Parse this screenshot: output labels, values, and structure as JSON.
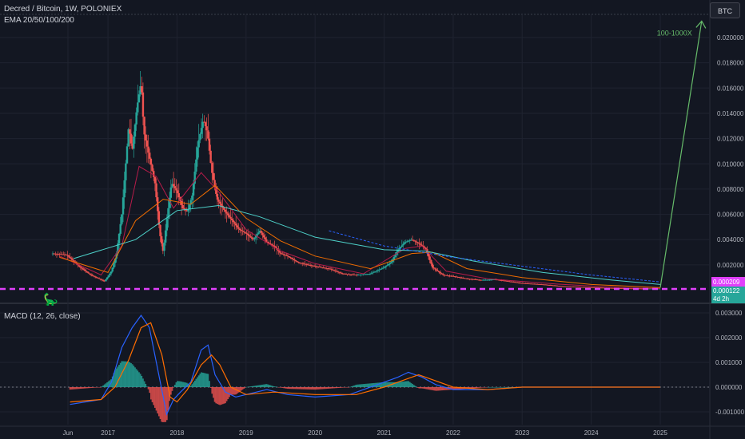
{
  "header": {
    "symbol_line": "Decred / Bitcoin, 1W, POLONIEX",
    "indicator_line": "EMA 20/50/100/200"
  },
  "macd_label": "MACD (12, 26, close)",
  "currency_button": "BTC",
  "price_tags": {
    "pink": "0.000209",
    "green_price": "0.000122",
    "green_countdown": "4d 2h"
  },
  "colors": {
    "background": "#131722",
    "grid": "#1f2330",
    "up": "#26a69a",
    "down": "#ef5350",
    "ema20": "#b71c4a",
    "ema50": "#ef6c00",
    "ema100": "#4dd0c8",
    "ema200": "#2962ff",
    "support": "#e040fb",
    "arrow": "#66bb6a",
    "macd": "#2962ff",
    "signal": "#ff6d00"
  },
  "chart_data": [
    {
      "type": "candlestick",
      "title": "Decred / Bitcoin, 1W, POLONIEX",
      "ylabel": "BTC",
      "ylim": [
        -3e-05,
        0.0215
      ],
      "y_ticks": [
        "0.020000",
        "0.018000",
        "0.016000",
        "0.014000",
        "0.012000",
        "0.010000",
        "0.008000",
        "0.006000",
        "0.004000",
        "0.002000"
      ],
      "x_ticks": [
        "Jun",
        "2017",
        "2018",
        "2019",
        "2020",
        "2021",
        "2022",
        "2023",
        "2024",
        "2025"
      ],
      "x_tick_dates": [
        2016.42,
        2017.0,
        2018.0,
        2019.0,
        2020.0,
        2021.0,
        2022.0,
        2023.0,
        2024.0,
        2025.0
      ],
      "close_path": [
        [
          2016.2,
          0.0029
        ],
        [
          2016.4,
          0.0028
        ],
        [
          2016.6,
          0.0018
        ],
        [
          2016.75,
          0.0012
        ],
        [
          2016.95,
          0.0007
        ],
        [
          2017.05,
          0.0015
        ],
        [
          2017.12,
          0.0028
        ],
        [
          2017.2,
          0.006
        ],
        [
          2017.25,
          0.0095
        ],
        [
          2017.3,
          0.013
        ],
        [
          2017.35,
          0.011
        ],
        [
          2017.42,
          0.0145
        ],
        [
          2017.48,
          0.0165
        ],
        [
          2017.52,
          0.0125
        ],
        [
          2017.6,
          0.0105
        ],
        [
          2017.68,
          0.0085
        ],
        [
          2017.75,
          0.0045
        ],
        [
          2017.8,
          0.003
        ],
        [
          2017.85,
          0.0055
        ],
        [
          2017.92,
          0.0085
        ],
        [
          2018.0,
          0.0078
        ],
        [
          2018.08,
          0.0065
        ],
        [
          2018.15,
          0.0062
        ],
        [
          2018.22,
          0.0075
        ],
        [
          2018.3,
          0.0115
        ],
        [
          2018.38,
          0.0135
        ],
        [
          2018.44,
          0.0125
        ],
        [
          2018.5,
          0.0095
        ],
        [
          2018.58,
          0.0072
        ],
        [
          2018.7,
          0.0062
        ],
        [
          2018.8,
          0.0055
        ],
        [
          2018.9,
          0.0048
        ],
        [
          2019.0,
          0.0045
        ],
        [
          2019.1,
          0.004
        ],
        [
          2019.2,
          0.0047
        ],
        [
          2019.3,
          0.0038
        ],
        [
          2019.4,
          0.0035
        ],
        [
          2019.5,
          0.0029
        ],
        [
          2019.6,
          0.0027
        ],
        [
          2019.75,
          0.0022
        ],
        [
          2019.9,
          0.002
        ],
        [
          2020.0,
          0.0019
        ],
        [
          2020.2,
          0.0017
        ],
        [
          2020.4,
          0.0013
        ],
        [
          2020.6,
          0.0012
        ],
        [
          2020.8,
          0.0013
        ],
        [
          2021.0,
          0.0018
        ],
        [
          2021.1,
          0.0022
        ],
        [
          2021.2,
          0.0032
        ],
        [
          2021.3,
          0.0038
        ],
        [
          2021.4,
          0.004
        ],
        [
          2021.5,
          0.0037
        ],
        [
          2021.6,
          0.0033
        ],
        [
          2021.7,
          0.0018
        ],
        [
          2021.85,
          0.0012
        ],
        [
          2022.0,
          0.0011
        ],
        [
          2022.2,
          0.0009
        ],
        [
          2022.4,
          0.0008
        ],
        [
          2022.6,
          0.00085
        ],
        [
          2022.8,
          0.0007
        ],
        [
          2023.0,
          0.00055
        ],
        [
          2023.3,
          0.00045
        ],
        [
          2023.6,
          0.0003
        ],
        [
          2024.0,
          0.00022
        ],
        [
          2024.4,
          0.00015
        ],
        [
          2024.8,
          0.00012
        ],
        [
          2025.0,
          0.000122
        ]
      ],
      "ema_lines": [
        {
          "name": "EMA 20",
          "points": [
            [
              2016.3,
              0.0027
            ],
            [
              2016.9,
              0.0012
            ],
            [
              2017.2,
              0.0035
            ],
            [
              2017.45,
              0.0098
            ],
            [
              2017.7,
              0.009
            ],
            [
              2017.95,
              0.0065
            ],
            [
              2018.35,
              0.0093
            ],
            [
              2018.6,
              0.0078
            ],
            [
              2019.0,
              0.0048
            ],
            [
              2019.5,
              0.0031
            ],
            [
              2020.0,
              0.0021
            ],
            [
              2020.7,
              0.0013
            ],
            [
              2021.3,
              0.0033
            ],
            [
              2021.55,
              0.0035
            ],
            [
              2021.9,
              0.0015
            ],
            [
              2022.5,
              0.0009
            ],
            [
              2023.5,
              0.00048
            ],
            [
              2024.5,
              0.00018
            ],
            [
              2025.0,
              0.00013
            ]
          ]
        },
        {
          "name": "EMA 50",
          "points": [
            [
              2016.3,
              0.0026
            ],
            [
              2017.0,
              0.0014
            ],
            [
              2017.4,
              0.0055
            ],
            [
              2017.8,
              0.0072
            ],
            [
              2018.2,
              0.0068
            ],
            [
              2018.55,
              0.0083
            ],
            [
              2019.0,
              0.0057
            ],
            [
              2019.5,
              0.0039
            ],
            [
              2020.0,
              0.0027
            ],
            [
              2020.8,
              0.0017
            ],
            [
              2021.4,
              0.0029
            ],
            [
              2021.7,
              0.003
            ],
            [
              2022.2,
              0.0017
            ],
            [
              2023.0,
              0.001
            ],
            [
              2024.0,
              0.00045
            ],
            [
              2025.0,
              0.0002
            ]
          ]
        },
        {
          "name": "EMA 100",
          "points": [
            [
              2016.5,
              0.0025
            ],
            [
              2017.4,
              0.004
            ],
            [
              2018.0,
              0.0063
            ],
            [
              2018.6,
              0.0067
            ],
            [
              2019.2,
              0.0058
            ],
            [
              2020.0,
              0.0042
            ],
            [
              2021.0,
              0.0032
            ],
            [
              2021.6,
              0.0031
            ],
            [
              2022.3,
              0.0023
            ],
            [
              2023.3,
              0.0014
            ],
            [
              2024.3,
              0.0008
            ],
            [
              2025.0,
              0.00045
            ]
          ]
        },
        {
          "name": "EMA 200",
          "points": [
            [
              2020.2,
              0.0047
            ],
            [
              2021.0,
              0.0035
            ],
            [
              2022.0,
              0.0026
            ],
            [
              2023.0,
              0.0019
            ],
            [
              2024.0,
              0.0012
            ],
            [
              2025.0,
              0.00065
            ]
          ]
        }
      ],
      "support_level": 0.0,
      "projection": {
        "from": [
          2025.0,
          0.0002
        ],
        "to": [
          2025.6,
          0.0213
        ]
      },
      "annotations": [
        "100-1000X"
      ]
    },
    {
      "type": "line",
      "title": "MACD (12, 26, close)",
      "ylim": [
        -0.0013,
        0.0033
      ],
      "y_ticks": [
        "0.003000",
        "0.002000",
        "0.001000",
        "0.000000",
        "-0.001000"
      ],
      "series": [
        {
          "name": "MACD",
          "points": [
            [
              2016.45,
              -0.0007
            ],
            [
              2016.9,
              -0.0005
            ],
            [
              2017.05,
              0.0002
            ],
            [
              2017.2,
              0.0016
            ],
            [
              2017.35,
              0.0024
            ],
            [
              2017.48,
              0.0029
            ],
            [
              2017.6,
              0.0024
            ],
            [
              2017.75,
              0.0003
            ],
            [
              2017.85,
              -0.0011
            ],
            [
              2017.95,
              -0.0005
            ],
            [
              2018.05,
              -0.0002
            ],
            [
              2018.2,
              0.0002
            ],
            [
              2018.35,
              0.0015
            ],
            [
              2018.45,
              0.0017
            ],
            [
              2018.55,
              0.0005
            ],
            [
              2018.7,
              -0.0002
            ],
            [
              2018.85,
              -0.0004
            ],
            [
              2019.0,
              -0.0003
            ],
            [
              2019.3,
              -0.0001
            ],
            [
              2019.6,
              -0.0003
            ],
            [
              2020.0,
              -0.0004
            ],
            [
              2020.5,
              -0.0003
            ],
            [
              2020.9,
              0.0001
            ],
            [
              2021.2,
              0.0004
            ],
            [
              2021.35,
              0.0006
            ],
            [
              2021.55,
              0.0004
            ],
            [
              2021.75,
              0.0001
            ],
            [
              2022.0,
              -0.0001
            ],
            [
              2022.5,
              -0.0001
            ],
            [
              2023.0,
              0.0
            ],
            [
              2024.0,
              0.0
            ],
            [
              2025.0,
              0.0
            ]
          ]
        },
        {
          "name": "Signal",
          "points": [
            [
              2016.45,
              -0.0006
            ],
            [
              2016.9,
              -0.0005
            ],
            [
              2017.1,
              0.0
            ],
            [
              2017.3,
              0.0011
            ],
            [
              2017.48,
              0.0024
            ],
            [
              2017.62,
              0.0026
            ],
            [
              2017.78,
              0.0013
            ],
            [
              2017.9,
              -0.0004
            ],
            [
              2018.0,
              -0.0006
            ],
            [
              2018.15,
              -0.0001
            ],
            [
              2018.35,
              0.0009
            ],
            [
              2018.5,
              0.0013
            ],
            [
              2018.62,
              0.0009
            ],
            [
              2018.78,
              0.0
            ],
            [
              2019.0,
              -0.0003
            ],
            [
              2019.4,
              -0.0002
            ],
            [
              2020.0,
              -0.0003
            ],
            [
              2020.6,
              -0.0003
            ],
            [
              2021.0,
              0.0
            ],
            [
              2021.3,
              0.0003
            ],
            [
              2021.5,
              0.0005
            ],
            [
              2021.7,
              0.0003
            ],
            [
              2022.0,
              0.0
            ],
            [
              2022.5,
              -0.0001
            ],
            [
              2023.0,
              0.0
            ],
            [
              2025.0,
              0.0
            ]
          ]
        }
      ]
    }
  ]
}
